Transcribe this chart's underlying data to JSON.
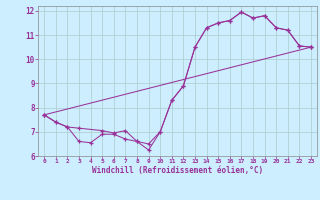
{
  "xlabel": "Windchill (Refroidissement éolien,°C)",
  "bg_color": "#cceeff",
  "grid_color": "#aacccc",
  "line_color": "#993399",
  "xlim": [
    -0.5,
    23.5
  ],
  "ylim": [
    6,
    12.2
  ],
  "xticks": [
    0,
    1,
    2,
    3,
    4,
    5,
    6,
    7,
    8,
    9,
    10,
    11,
    12,
    13,
    14,
    15,
    16,
    17,
    18,
    19,
    20,
    21,
    22,
    23
  ],
  "yticks": [
    6,
    7,
    8,
    9,
    10,
    11,
    12
  ],
  "line1_x": [
    0,
    1,
    2,
    3,
    4,
    5,
    6,
    7,
    8,
    9,
    10,
    11,
    12,
    13,
    14,
    15,
    16,
    17,
    18,
    19,
    20,
    21,
    22,
    23
  ],
  "line1_y": [
    7.7,
    7.4,
    7.2,
    6.6,
    6.55,
    6.9,
    6.9,
    6.7,
    6.6,
    6.25,
    7.0,
    8.3,
    8.9,
    10.5,
    11.3,
    11.5,
    11.6,
    11.95,
    11.7,
    11.8,
    11.3,
    11.2,
    10.55,
    10.5
  ],
  "line2_x": [
    0,
    1,
    2,
    3,
    5,
    6,
    7,
    8,
    9,
    10,
    11,
    12,
    13,
    14,
    15,
    16,
    17,
    18,
    19,
    20,
    21,
    22,
    23
  ],
  "line2_y": [
    7.7,
    7.4,
    7.2,
    7.15,
    7.05,
    6.95,
    7.05,
    6.6,
    6.5,
    7.0,
    8.3,
    8.9,
    10.5,
    11.3,
    11.5,
    11.6,
    11.95,
    11.7,
    11.8,
    11.3,
    11.2,
    10.55,
    10.5
  ],
  "line3_x": [
    0,
    23
  ],
  "line3_y": [
    7.7,
    10.5
  ]
}
